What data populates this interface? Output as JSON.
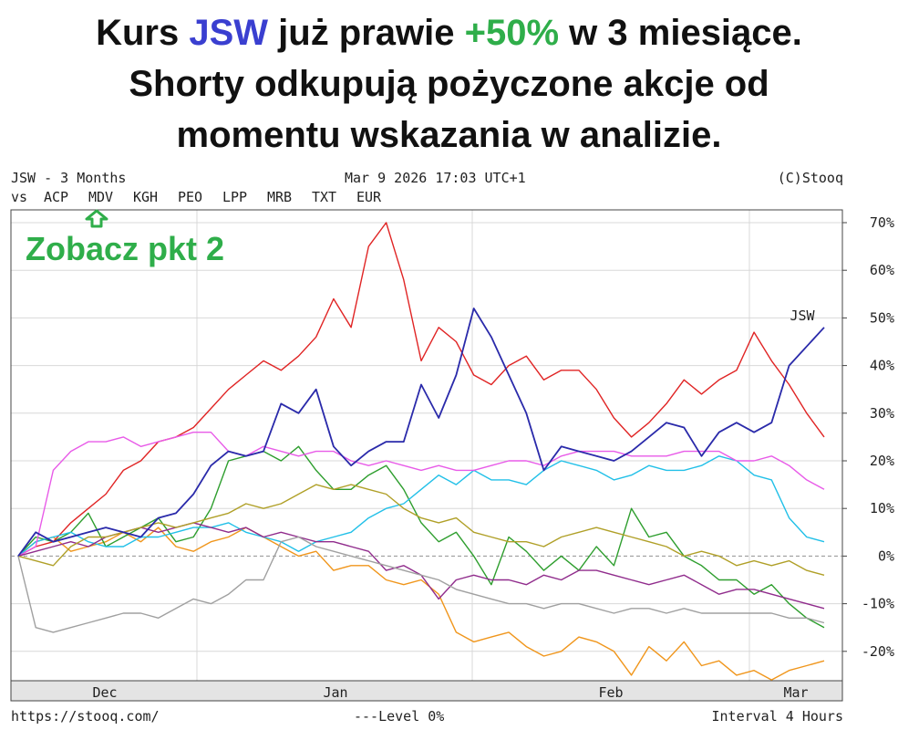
{
  "headline": {
    "l1_a": "Kurs ",
    "l1_ticker": "JSW",
    "l1_b": " już prawie ",
    "l1_pct": "+50%",
    "l1_c": " w 3 miesiące.",
    "l2": "Shorty odkupują pożyczone akcje od",
    "l3": "momentu wskazania w analizie."
  },
  "annotation": {
    "callout": "Zobacz pkt 2"
  },
  "header": {
    "title": "JSW - 3 Months",
    "timestamp": "Mar 9 2026 17:03 UTC+1",
    "copyright": "(C)Stooq",
    "vs_label": "vs"
  },
  "footer": {
    "url": "https://stooq.com/",
    "level": "---Level 0%",
    "interval": "Interval 4 Hours"
  },
  "chart_data": {
    "type": "line",
    "ylim": [
      -30,
      75
    ],
    "y_ticks": [
      "70%",
      "60%",
      "50%",
      "40%",
      "30%",
      "20%",
      "10%",
      "0%",
      "-10%",
      "-20%"
    ],
    "x_ticks": [
      "Dec",
      "Jan",
      "Feb",
      "Mar"
    ],
    "grid": true,
    "end_label": "JSW",
    "series": [
      {
        "name": "ACP",
        "color": "#f0961c",
        "values": [
          0,
          3,
          4,
          1,
          2,
          3,
          5,
          3,
          6,
          2,
          1,
          3,
          4,
          6,
          4,
          2,
          0,
          1,
          -3,
          -2,
          -2,
          -5,
          -6,
          -5,
          -8,
          -16,
          -18,
          -17,
          -16,
          -19,
          -21,
          -20,
          -17,
          -18,
          -20,
          -25,
          -19,
          -22,
          -18,
          -23,
          -22,
          -25,
          -24,
          -26,
          -24,
          -23,
          -22
        ]
      },
      {
        "name": "MDV",
        "color": "#2e9e2e",
        "values": [
          0,
          4,
          3,
          5,
          9,
          2,
          4,
          6,
          8,
          3,
          4,
          10,
          20,
          21,
          22,
          20,
          23,
          18,
          14,
          14,
          17,
          19,
          14,
          7,
          3,
          5,
          0,
          -6,
          4,
          1,
          -3,
          0,
          -3,
          2,
          -2,
          10,
          4,
          5,
          0,
          -2,
          -5,
          -5,
          -8,
          -6,
          -10,
          -13,
          -15
        ]
      },
      {
        "name": "KGH",
        "color": "#e02424",
        "values": [
          0,
          2,
          3,
          7,
          10,
          13,
          18,
          20,
          24,
          25,
          27,
          31,
          35,
          38,
          41,
          39,
          42,
          46,
          54,
          48,
          65,
          70,
          58,
          41,
          48,
          45,
          38,
          36,
          40,
          42,
          37,
          39,
          39,
          35,
          29,
          25,
          28,
          32,
          37,
          34,
          37,
          39,
          47,
          41,
          36,
          30,
          25
        ]
      },
      {
        "name": "PEO",
        "color": "#22c0e8",
        "values": [
          0,
          3,
          4,
          5,
          3,
          2,
          2,
          4,
          4,
          5,
          6,
          6,
          7,
          5,
          4,
          3,
          1,
          3,
          4,
          5,
          8,
          10,
          11,
          14,
          17,
          15,
          18,
          16,
          16,
          15,
          18,
          20,
          19,
          18,
          16,
          17,
          19,
          18,
          18,
          19,
          21,
          20,
          17,
          16,
          8,
          4,
          3
        ]
      },
      {
        "name": "LPP",
        "color": "#e85be8",
        "values": [
          0,
          2,
          18,
          22,
          24,
          24,
          25,
          23,
          24,
          25,
          26,
          26,
          22,
          21,
          23,
          22,
          21,
          22,
          22,
          20,
          19,
          20,
          19,
          18,
          19,
          18,
          18,
          19,
          20,
          20,
          19,
          21,
          22,
          22,
          22,
          21,
          21,
          21,
          22,
          22,
          22,
          20,
          20,
          21,
          19,
          16,
          14
        ]
      },
      {
        "name": "MRB",
        "color": "#902c8c",
        "values": [
          0,
          1,
          2,
          3,
          2,
          4,
          5,
          6,
          5,
          6,
          7,
          6,
          5,
          6,
          4,
          5,
          4,
          3,
          3,
          2,
          1,
          -3,
          -2,
          -4,
          -9,
          -5,
          -4,
          -5,
          -5,
          -6,
          -4,
          -5,
          -3,
          -3,
          -4,
          -5,
          -6,
          -5,
          -4,
          -6,
          -8,
          -7,
          -7,
          -8,
          -9,
          -10,
          -11
        ]
      },
      {
        "name": "TXT",
        "color": "#b0a028",
        "values": [
          0,
          -1,
          -2,
          2,
          4,
          4,
          5,
          6,
          7,
          6,
          7,
          8,
          9,
          11,
          10,
          11,
          13,
          15,
          14,
          15,
          14,
          13,
          10,
          8,
          7,
          8,
          5,
          4,
          3,
          3,
          2,
          4,
          5,
          6,
          5,
          4,
          3,
          2,
          0,
          1,
          0,
          -2,
          -1,
          -2,
          -1,
          -3,
          -4
        ]
      },
      {
        "name": "EUR",
        "color": "#a0a0a0",
        "values": [
          0,
          -15,
          -16,
          -15,
          -14,
          -13,
          -12,
          -12,
          -13,
          -11,
          -9,
          -10,
          -8,
          -5,
          -5,
          3,
          4,
          2,
          1,
          0,
          -1,
          -2,
          -3,
          -4,
          -5,
          -7,
          -8,
          -9,
          -10,
          -10,
          -11,
          -10,
          -10,
          -11,
          -12,
          -11,
          -11,
          -12,
          -11,
          -12,
          -12,
          -12,
          -12,
          -12,
          -13,
          -13,
          -14
        ]
      },
      {
        "name": "JSW",
        "color": "#2a2aaa",
        "values": [
          0,
          5,
          3,
          4,
          5,
          6,
          5,
          4,
          8,
          9,
          13,
          19,
          22,
          21,
          22,
          32,
          30,
          35,
          23,
          19,
          22,
          24,
          24,
          36,
          29,
          38,
          52,
          46,
          38,
          30,
          18,
          23,
          22,
          21,
          20,
          22,
          25,
          28,
          27,
          21,
          26,
          28,
          26,
          28,
          40,
          44,
          48
        ]
      }
    ]
  },
  "colors": {
    "headline_ticker": "#3a3fd0",
    "headline_pct": "#2fae4a",
    "callout": "#2fae4a"
  },
  "icons": {
    "callout_arrow": "arrow-up-outline-icon"
  }
}
